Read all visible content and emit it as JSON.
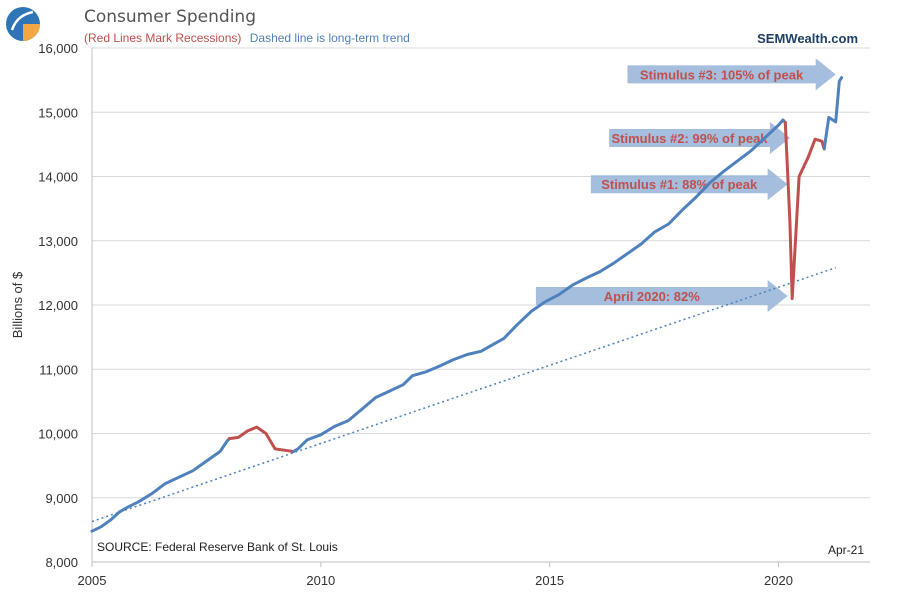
{
  "header": {
    "title": "Consumer Spending",
    "subtitle_red": "(Red Lines Mark Recessions)",
    "subtitle_blue": "Dashed line is long-term trend",
    "brand": "SEMWealth.com"
  },
  "footer": {
    "source": "SOURCE:  Federal Reserve Bank of St. Louis",
    "date": "Apr-21"
  },
  "colors": {
    "series": "#4f81bd",
    "recession": "#c0504d",
    "trend": "#4f81bd",
    "grid": "#d9d9d9",
    "arrow": "#95b3d7",
    "annotation_text": "#c0504d"
  },
  "chart_data": {
    "type": "line",
    "ylabel": "Billions of $",
    "xlim": [
      2005,
      2022
    ],
    "ylim": [
      8000,
      16000
    ],
    "y_ticks": [
      {
        "value": 8000,
        "label": "8,000"
      },
      {
        "value": 9000,
        "label": "9,000"
      },
      {
        "value": 10000,
        "label": "10,000"
      },
      {
        "value": 11000,
        "label": "11,000"
      },
      {
        "value": 12000,
        "label": "12,000"
      },
      {
        "value": 13000,
        "label": "13,000"
      },
      {
        "value": 14000,
        "label": "14,000"
      },
      {
        "value": 15000,
        "label": "15,000"
      },
      {
        "value": 16000,
        "label": "16,000"
      }
    ],
    "x_ticks": [
      {
        "value": 2005,
        "label": "2005"
      },
      {
        "value": 2010,
        "label": "2010"
      },
      {
        "value": 2015,
        "label": "2015"
      },
      {
        "value": 2020,
        "label": "2020"
      }
    ],
    "grid": true,
    "series": [
      {
        "values": [
          [
            2005.0,
            8480
          ],
          [
            2005.2,
            8550
          ],
          [
            2005.4,
            8650
          ],
          [
            2005.6,
            8780
          ],
          [
            2005.8,
            8860
          ],
          [
            2006.0,
            8930
          ],
          [
            2006.3,
            9060
          ],
          [
            2006.6,
            9220
          ],
          [
            2006.9,
            9320
          ],
          [
            2007.2,
            9420
          ],
          [
            2007.5,
            9570
          ],
          [
            2007.8,
            9720
          ],
          [
            2007.95,
            9880
          ],
          [
            2008.0,
            9920
          ],
          [
            2008.2,
            9940
          ],
          [
            2008.4,
            10040
          ],
          [
            2008.6,
            10100
          ],
          [
            2008.8,
            10000
          ],
          [
            2009.0,
            9760
          ],
          [
            2009.2,
            9740
          ],
          [
            2009.4,
            9720
          ],
          [
            2009.5,
            9760
          ],
          [
            2009.7,
            9900
          ],
          [
            2010.0,
            9980
          ],
          [
            2010.3,
            10110
          ],
          [
            2010.6,
            10200
          ],
          [
            2010.9,
            10380
          ],
          [
            2011.2,
            10560
          ],
          [
            2011.5,
            10660
          ],
          [
            2011.8,
            10760
          ],
          [
            2012.0,
            10900
          ],
          [
            2012.3,
            10960
          ],
          [
            2012.6,
            11050
          ],
          [
            2012.9,
            11150
          ],
          [
            2013.2,
            11230
          ],
          [
            2013.5,
            11280
          ],
          [
            2013.8,
            11400
          ],
          [
            2014.0,
            11480
          ],
          [
            2014.3,
            11700
          ],
          [
            2014.6,
            11900
          ],
          [
            2014.9,
            12050
          ],
          [
            2015.2,
            12160
          ],
          [
            2015.5,
            12310
          ],
          [
            2015.8,
            12420
          ],
          [
            2016.1,
            12520
          ],
          [
            2016.4,
            12650
          ],
          [
            2016.7,
            12800
          ],
          [
            2017.0,
            12950
          ],
          [
            2017.3,
            13140
          ],
          [
            2017.6,
            13260
          ],
          [
            2017.9,
            13480
          ],
          [
            2018.2,
            13680
          ],
          [
            2018.5,
            13900
          ],
          [
            2018.8,
            14080
          ],
          [
            2019.1,
            14240
          ],
          [
            2019.4,
            14400
          ],
          [
            2019.7,
            14600
          ],
          [
            2020.0,
            14800
          ],
          [
            2020.1,
            14880
          ],
          [
            2020.15,
            14840
          ]
        ]
      },
      {
        "values": [
          [
            2020.15,
            14840
          ],
          [
            2020.25,
            13300
          ],
          [
            2020.3,
            12100
          ],
          [
            2020.45,
            14000
          ],
          [
            2020.65,
            14300
          ],
          [
            2020.8,
            14580
          ],
          [
            2020.95,
            14550
          ],
          [
            2021.0,
            14430
          ]
        ]
      },
      {
        "values": [
          [
            2021.0,
            14430
          ],
          [
            2021.1,
            14920
          ],
          [
            2021.25,
            14850
          ],
          [
            2021.33,
            15480
          ],
          [
            2021.38,
            15540
          ]
        ]
      }
    ],
    "trend": [
      [
        2005.0,
        8630
      ],
      [
        2021.25,
        12580
      ]
    ],
    "annotations": [
      {
        "text": "Stimulus #3: 105% of peak",
        "x0": 2016.7,
        "x1": 2021.25,
        "y": 15590
      },
      {
        "text": "Stimulus #2: 99% of peak",
        "x0": 2016.3,
        "x1": 2020.25,
        "y": 14600
      },
      {
        "text": "Stimulus #1: 88% of peak",
        "x0": 2015.9,
        "x1": 2020.2,
        "y": 13880
      },
      {
        "text": "April 2020: 82%",
        "x0": 2014.7,
        "x1": 2020.2,
        "y": 12140
      }
    ]
  }
}
